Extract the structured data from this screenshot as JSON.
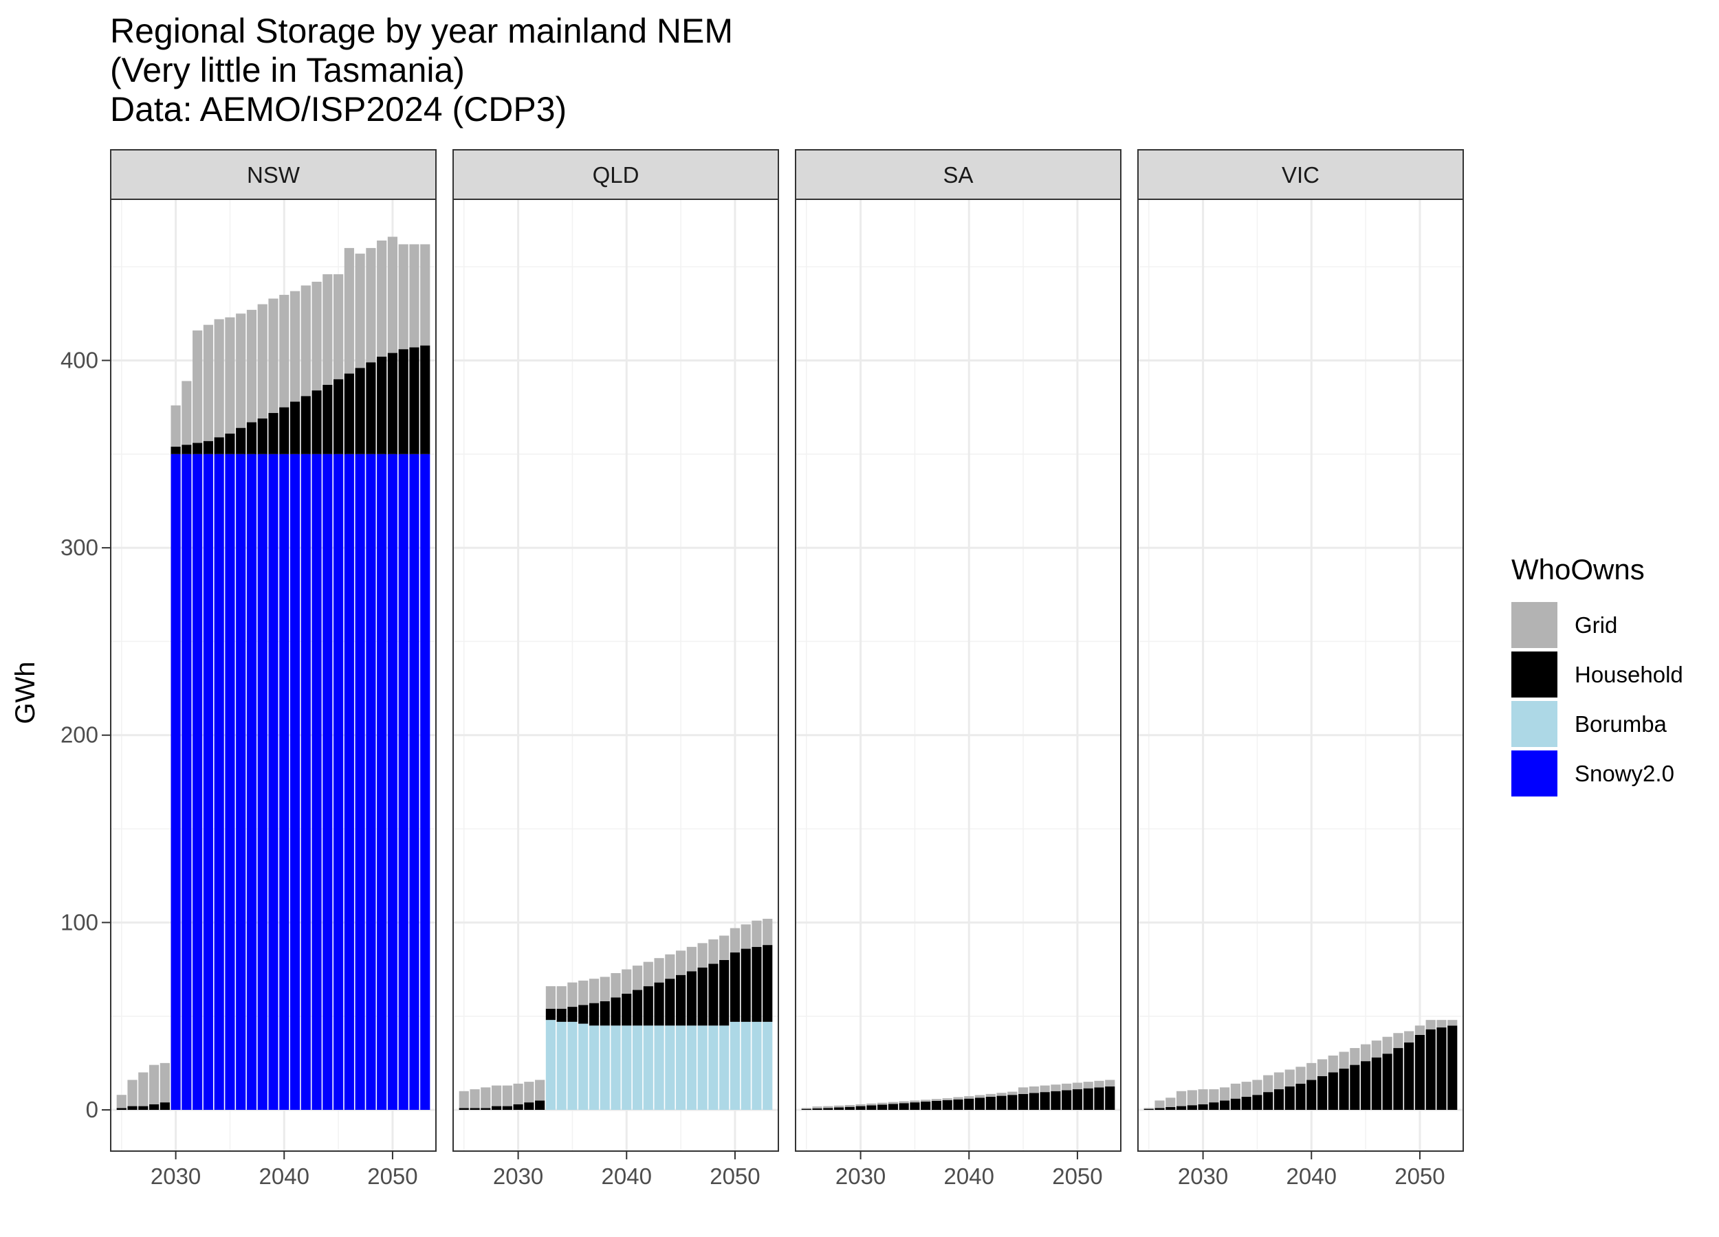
{
  "chart_data": {
    "type": "bar",
    "stacked": true,
    "title": "Regional Storage by year mainland NEM",
    "subtitle_lines": [
      "(Very little in Tasmania)",
      "Data: AEMO/ISP2024 (CDP3)"
    ],
    "xlabel": "",
    "ylabel": "GWh",
    "xlim": [
      2024,
      2054
    ],
    "ylim": [
      -22,
      486
    ],
    "x_ticks": [
      2030,
      2040,
      2050
    ],
    "y_ticks": [
      0,
      100,
      200,
      300,
      400
    ],
    "grid": true,
    "legend": {
      "title": "WhoOwns",
      "position": "right"
    },
    "colors": {
      "Grid": "#b3b3b3",
      "Household": "#000000",
      "Borumba": "#add8e6",
      "Snowy2.0": "#0000ff"
    },
    "stack_order": [
      "Snowy2.0",
      "Borumba",
      "Household",
      "Grid"
    ],
    "years": [
      2025,
      2026,
      2027,
      2028,
      2029,
      2030,
      2031,
      2032,
      2033,
      2034,
      2035,
      2036,
      2037,
      2038,
      2039,
      2040,
      2041,
      2042,
      2043,
      2044,
      2045,
      2046,
      2047,
      2048,
      2049,
      2050,
      2051,
      2052,
      2053
    ],
    "panels": [
      {
        "region": "NSW",
        "series": [
          {
            "name": "Snowy2.0",
            "values": [
              0,
              0,
              0,
              0,
              0,
              350,
              350,
              350,
              350,
              350,
              350,
              350,
              350,
              350,
              350,
              350,
              350,
              350,
              350,
              350,
              350,
              350,
              350,
              350,
              350,
              350,
              350,
              350,
              350
            ]
          },
          {
            "name": "Borumba",
            "values": [
              0,
              0,
              0,
              0,
              0,
              0,
              0,
              0,
              0,
              0,
              0,
              0,
              0,
              0,
              0,
              0,
              0,
              0,
              0,
              0,
              0,
              0,
              0,
              0,
              0,
              0,
              0,
              0,
              0
            ]
          },
          {
            "name": "Household",
            "values": [
              1,
              2,
              2,
              3,
              4,
              4,
              5,
              6,
              7,
              9,
              11,
              14,
              17,
              19,
              22,
              25,
              28,
              31,
              34,
              37,
              40,
              43,
              46,
              49,
              52,
              54,
              56,
              57,
              58
            ]
          },
          {
            "name": "Grid",
            "values": [
              7,
              14,
              18,
              21,
              21,
              22,
              34,
              60,
              62,
              63,
              62,
              61,
              60,
              61,
              61,
              60,
              59,
              59,
              58,
              59,
              56,
              67,
              61,
              61,
              62,
              62,
              56,
              55,
              54
            ]
          }
        ]
      },
      {
        "region": "QLD",
        "series": [
          {
            "name": "Snowy2.0",
            "values": [
              0,
              0,
              0,
              0,
              0,
              0,
              0,
              0,
              0,
              0,
              0,
              0,
              0,
              0,
              0,
              0,
              0,
              0,
              0,
              0,
              0,
              0,
              0,
              0,
              0,
              0,
              0,
              0,
              0
            ]
          },
          {
            "name": "Borumba",
            "values": [
              0,
              0,
              0,
              0,
              0,
              0,
              0,
              0,
              48,
              47,
              47,
              46,
              45,
              45,
              45,
              45,
              45,
              45,
              45,
              45,
              45,
              45,
              45,
              45,
              45,
              47,
              47,
              47,
              47
            ]
          },
          {
            "name": "Household",
            "values": [
              1,
              1,
              1,
              2,
              2,
              3,
              4,
              5,
              6,
              7,
              8,
              10,
              12,
              13,
              15,
              17,
              19,
              21,
              23,
              25,
              27,
              29,
              31,
              33,
              35,
              37,
              39,
              40,
              41
            ]
          },
          {
            "name": "Grid",
            "values": [
              9,
              10,
              11,
              11,
              11,
              11,
              11,
              11,
              12,
              12,
              13,
              13,
              13,
              13,
              13,
              13,
              13,
              13,
              13,
              13,
              13,
              13,
              13,
              13,
              13,
              13,
              13,
              14,
              14
            ]
          }
        ]
      },
      {
        "region": "SA",
        "series": [
          {
            "name": "Snowy2.0",
            "values": [
              0,
              0,
              0,
              0,
              0,
              0,
              0,
              0,
              0,
              0,
              0,
              0,
              0,
              0,
              0,
              0,
              0,
              0,
              0,
              0,
              0,
              0,
              0,
              0,
              0,
              0,
              0,
              0,
              0
            ]
          },
          {
            "name": "Borumba",
            "values": [
              0,
              0,
              0,
              0,
              0,
              0,
              0,
              0,
              0,
              0,
              0,
              0,
              0,
              0,
              0,
              0,
              0,
              0,
              0,
              0,
              0,
              0,
              0,
              0,
              0,
              0,
              0,
              0,
              0
            ]
          },
          {
            "name": "Household",
            "values": [
              0.5,
              0.8,
              1,
              1.3,
              1.6,
              2,
              2.4,
              2.8,
              3.2,
              3.6,
              4,
              4.4,
              4.8,
              5.2,
              5.6,
              6,
              6.5,
              7,
              7.5,
              8,
              8.5,
              9,
              9.5,
              10,
              10.5,
              11,
              11.5,
              12,
              12.5
            ]
          },
          {
            "name": "Grid",
            "values": [
              0.5,
              1,
              1,
              1,
              1,
              1,
              1,
              1,
              1,
              1,
              1,
              1,
              1,
              1,
              1.2,
              1.3,
              1.4,
              1.5,
              1.6,
              1.7,
              3.5,
              3.5,
              3.5,
              3.5,
              3.5,
              3.5,
              3.5,
              3.5,
              3.5
            ]
          }
        ]
      },
      {
        "region": "VIC",
        "series": [
          {
            "name": "Snowy2.0",
            "values": [
              0,
              0,
              0,
              0,
              0,
              0,
              0,
              0,
              0,
              0,
              0,
              0,
              0,
              0,
              0,
              0,
              0,
              0,
              0,
              0,
              0,
              0,
              0,
              0,
              0,
              0,
              0,
              0,
              0
            ]
          },
          {
            "name": "Borumba",
            "values": [
              0,
              0,
              0,
              0,
              0,
              0,
              0,
              0,
              0,
              0,
              0,
              0,
              0,
              0,
              0,
              0,
              0,
              0,
              0,
              0,
              0,
              0,
              0,
              0,
              0,
              0,
              0,
              0,
              0
            ]
          },
          {
            "name": "Household",
            "values": [
              0.5,
              1,
              1.5,
              2,
              2.5,
              3,
              4,
              5,
              6,
              7,
              8,
              9.5,
              11,
              12.5,
              14,
              16,
              18,
              20,
              22,
              24,
              26,
              28,
              30,
              33,
              36,
              40,
              43,
              44,
              45
            ]
          },
          {
            "name": "Grid",
            "values": [
              0.5,
              4,
              5,
              8,
              8,
              8,
              7,
              7,
              8,
              8,
              8,
              9,
              9,
              9,
              9,
              9,
              9,
              9,
              9,
              9,
              9,
              9,
              9,
              8,
              6,
              5,
              5,
              4,
              3
            ]
          }
        ]
      }
    ]
  }
}
